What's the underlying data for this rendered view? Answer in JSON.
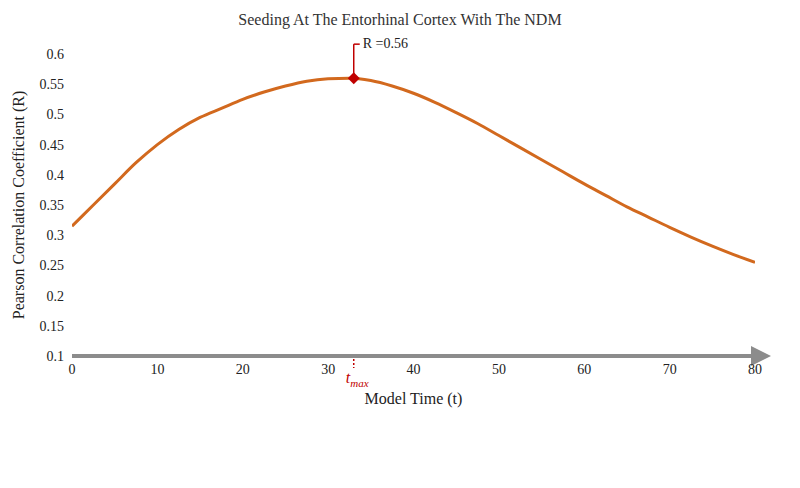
{
  "chart_data": {
    "type": "line",
    "title": "Seeding At The Entorhinal Cortex With The NDM",
    "x_label": "Model Time (t)",
    "y_label": "Pearson Correlation Coefficient (R)",
    "x": [
      0,
      2.5,
      5,
      7.5,
      10,
      12.5,
      15,
      17.5,
      20,
      22.5,
      25,
      27.5,
      30,
      32.5,
      35,
      37.5,
      40,
      42.5,
      45,
      47.5,
      50,
      52.5,
      55,
      57.5,
      60,
      62.5,
      65,
      67.5,
      70,
      72.5,
      75,
      77.5,
      80
    ],
    "values": [
      0.315,
      0.35,
      0.385,
      0.42,
      0.45,
      0.475,
      0.495,
      0.51,
      0.525,
      0.537,
      0.547,
      0.555,
      0.559,
      0.56,
      0.556,
      0.547,
      0.535,
      0.52,
      0.503,
      0.485,
      0.465,
      0.445,
      0.425,
      0.405,
      0.385,
      0.366,
      0.347,
      0.33,
      0.313,
      0.297,
      0.282,
      0.268,
      0.255
    ],
    "color": "#d2691e",
    "xlim": [
      0,
      80
    ],
    "ylim": [
      0.1,
      0.6
    ],
    "xticks": [
      0,
      10,
      20,
      30,
      40,
      50,
      60,
      70,
      80
    ],
    "yticks": [
      0.1,
      0.15,
      0.2,
      0.25,
      0.3,
      0.35,
      0.4,
      0.45,
      0.5,
      0.55,
      0.6
    ],
    "grid": false,
    "annotations": [
      {
        "text": "R =0.56",
        "x": 33,
        "y": 0.56,
        "color": "#c00000"
      },
      {
        "text": "t",
        "subscript": "max",
        "x": 33,
        "y": 0.1,
        "color": "#c00000"
      }
    ]
  }
}
